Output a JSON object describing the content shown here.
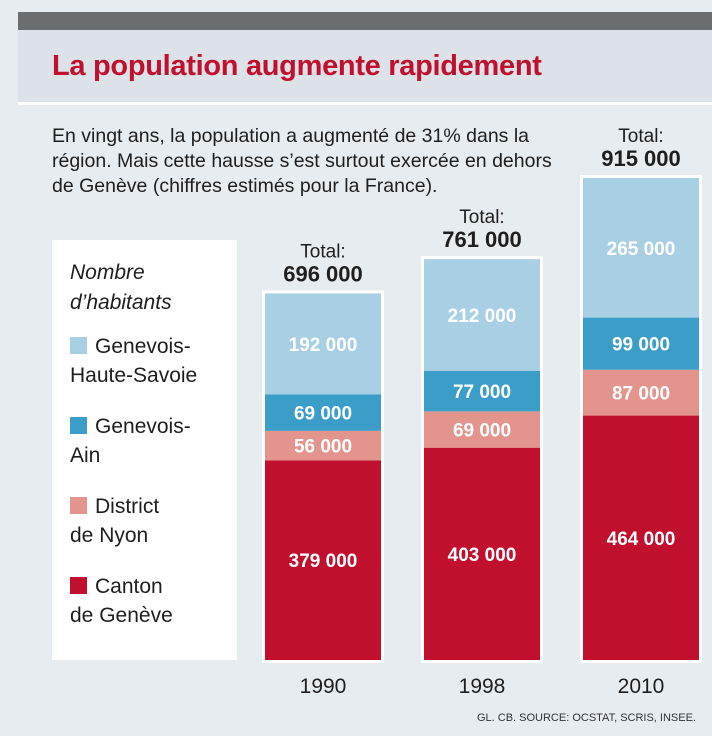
{
  "chart_data": {
    "type": "stacked_bar",
    "title": "La population augmente rapidement",
    "subtitle": "En vingt ans, la population a augmenté de 31% dans la région. Mais cette hausse s’est surtout exercée en dehors de Genève (chiffres estimés pour la France).",
    "legend_title": "Nombre d’habitants",
    "source": "GL. CB. SOURCE: OCSTAT, SCRIS, INSEE.",
    "categories": [
      "1990",
      "1998",
      "2010"
    ],
    "series": [
      {
        "name": "Canton de Genève",
        "color": "#c0102e",
        "values": [
          379000,
          403000,
          464000
        ],
        "value_labels": [
          "379 000",
          "403 000",
          "464 000"
        ]
      },
      {
        "name": "District de Nyon",
        "color": "#e3948c",
        "values": [
          56000,
          69000,
          87000
        ],
        "value_labels": [
          "56 000",
          "69 000",
          "87 000"
        ]
      },
      {
        "name": "Genevois-Ain",
        "color": "#3b9ec9",
        "values": [
          69000,
          77000,
          99000
        ],
        "value_labels": [
          "69 000",
          "77 000",
          "99 000"
        ]
      },
      {
        "name": "Genevois-Haute-Savoie",
        "color": "#a9cfe5",
        "values": [
          192000,
          212000,
          265000
        ],
        "value_labels": [
          "192 000",
          "212 000",
          "265 000"
        ]
      }
    ],
    "total_prefix": "Total:",
    "totals": [
      696000,
      761000,
      915000
    ],
    "total_labels": [
      "696 000",
      "761 000",
      "915 000"
    ]
  }
}
